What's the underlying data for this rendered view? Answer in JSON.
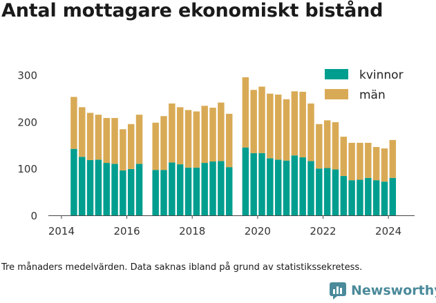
{
  "title": "Antal mottagare ekonomiskt bistånd",
  "caption": "Tre månaders medelvärden. Data saknas ibland på grund av statistikssekretess.",
  "brand": {
    "name": "Newsworthy",
    "icon": "newsworthy-logo-icon"
  },
  "colors": {
    "kvinnor": "#009e8f",
    "man": "#d9aa55",
    "axis": "#333333",
    "grid": "#e6e6e6"
  },
  "chart_data": {
    "type": "bar",
    "stacked": true,
    "title": "Antal mottagare ekonomiskt bistånd",
    "xlabel": "",
    "ylabel": "",
    "xlim": [
      2013.6,
      2024.8
    ],
    "ylim": [
      0,
      320
    ],
    "yticks": [
      0,
      100,
      200,
      300
    ],
    "xticks": [
      2014,
      2016,
      2018,
      2020,
      2022,
      2024
    ],
    "legend_position": "top-right",
    "grid": false,
    "bar_width_years": 0.2,
    "x": [
      2014.38,
      2014.63,
      2014.88,
      2015.13,
      2015.38,
      2015.63,
      2015.88,
      2016.13,
      2016.38,
      2016.88,
      2017.13,
      2017.38,
      2017.63,
      2017.88,
      2018.13,
      2018.38,
      2018.63,
      2018.88,
      2019.13,
      2019.63,
      2019.88,
      2020.13,
      2020.38,
      2020.63,
      2020.88,
      2021.13,
      2021.38,
      2021.63,
      2021.88,
      2022.13,
      2022.38,
      2022.63,
      2022.88,
      2023.13,
      2023.38,
      2023.63,
      2023.88,
      2024.13
    ],
    "series": [
      {
        "name": "kvinnor",
        "color": "#009e8f",
        "values": [
          142,
          125,
          118,
          119,
          112,
          110,
          96,
          99,
          110,
          97,
          97,
          113,
          109,
          102,
          102,
          112,
          115,
          116,
          103,
          145,
          133,
          133,
          122,
          119,
          117,
          128,
          124,
          116,
          100,
          101,
          98,
          84,
          75,
          76,
          80,
          75,
          72,
          80
        ]
      },
      {
        "name": "män",
        "color": "#d9aa55",
        "values": [
          111,
          106,
          101,
          96,
          96,
          98,
          88,
          96,
          105,
          101,
          115,
          126,
          122,
          123,
          120,
          122,
          115,
          125,
          114,
          150,
          135,
          142,
          138,
          139,
          131,
          137,
          140,
          123,
          95,
          102,
          101,
          84,
          80,
          79,
          75,
          71,
          71,
          81
        ]
      }
    ]
  }
}
